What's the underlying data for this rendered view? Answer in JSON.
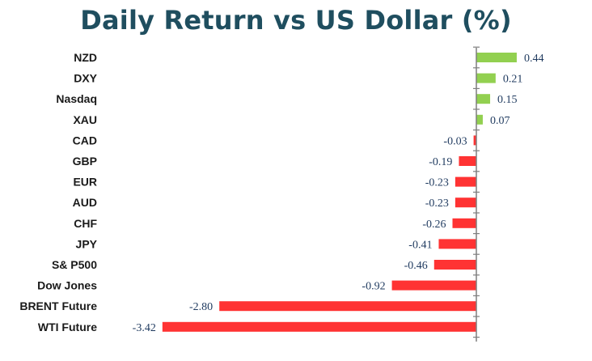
{
  "title": "Daily Return vs US Dollar (%)",
  "colors": {
    "positive": "#92d050",
    "negative": "#ff3333",
    "title": "#1f4e5f",
    "axis": "#7f7f7f",
    "value_label": "#1f3a5f"
  },
  "chart_data": {
    "type": "bar",
    "orientation": "horizontal",
    "title": "Daily Return vs US Dollar (%)",
    "xlabel": "",
    "ylabel": "",
    "grid": false,
    "legend": "none",
    "xlim": [
      -3.42,
      0.44
    ],
    "categories": [
      "NZD",
      "DXY",
      "Nasdaq",
      "XAU",
      "CAD",
      "GBP",
      "EUR",
      "AUD",
      "CHF",
      "JPY",
      "S& P500",
      "Dow Jones",
      "BRENT Future",
      "WTI Future"
    ],
    "values": [
      0.44,
      0.21,
      0.15,
      0.07,
      -0.03,
      -0.19,
      -0.23,
      -0.23,
      -0.26,
      -0.41,
      -0.46,
      -0.92,
      -2.8,
      -3.42
    ],
    "value_labels": [
      "0.44",
      "0.21",
      "0.15",
      "0.07",
      "-0.03",
      "-0.19",
      "-0.23",
      "-0.23",
      "-0.26",
      "-0.41",
      "-0.46",
      "-0.92",
      "-2.80",
      "-3.42"
    ]
  }
}
